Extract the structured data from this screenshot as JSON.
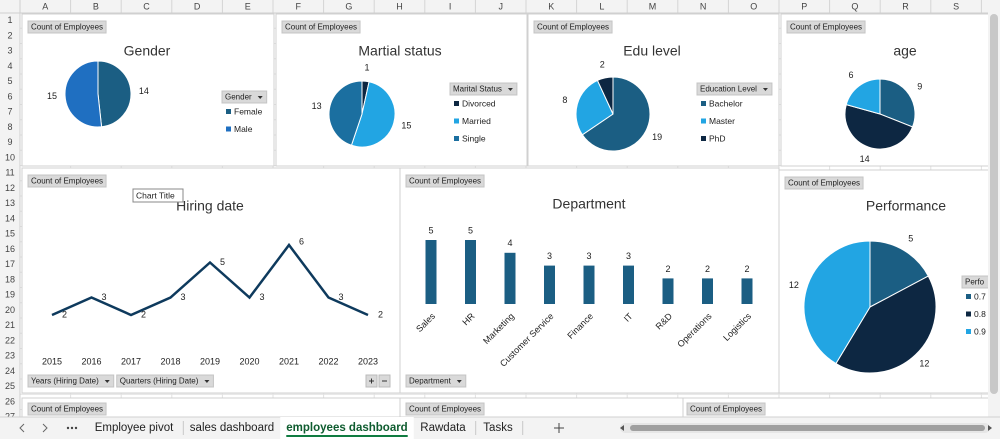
{
  "spreadsheet": {
    "columns": [
      "A",
      "B",
      "C",
      "D",
      "E",
      "F",
      "G",
      "H",
      "I",
      "J",
      "K",
      "L",
      "M",
      "N",
      "O",
      "P",
      "Q",
      "R",
      "S"
    ],
    "rows": [
      1,
      2,
      3,
      4,
      5,
      6,
      7,
      8,
      9,
      10,
      11,
      12,
      13,
      14,
      15,
      16,
      17,
      18,
      19,
      20,
      21,
      22,
      23,
      24,
      25,
      26,
      27
    ]
  },
  "chart_data": [
    {
      "type": "pie",
      "title": "Gender",
      "button": "Count of Employees",
      "legend_title": "Gender",
      "categories": [
        "Female",
        "Male"
      ],
      "values": [
        14,
        15
      ],
      "colors": [
        "#1b5e83",
        "#1f6fc1"
      ]
    },
    {
      "type": "pie",
      "title": "Martial status",
      "button": "Count of Employees",
      "legend_title": "Marital Status",
      "categories": [
        "Divorced",
        "Married",
        "Single"
      ],
      "values": [
        1,
        15,
        13
      ],
      "colors": [
        "#0d2742",
        "#22a5e3",
        "#1b6fa0"
      ]
    },
    {
      "type": "pie",
      "title": "Edu level",
      "button": "Count of Employees",
      "legend_title": "Education Level",
      "categories": [
        "Bachelor",
        "Master",
        "PhD"
      ],
      "values": [
        19,
        8,
        2
      ],
      "colors": [
        "#1b5e83",
        "#22a5e3",
        "#0d2742"
      ]
    },
    {
      "type": "pie",
      "title": "age",
      "button": "Count of Employees",
      "values": [
        9,
        14,
        6
      ],
      "colors": [
        "#1b5e83",
        "#0d2742",
        "#22a5e3"
      ]
    },
    {
      "type": "line",
      "title": "Hiring date",
      "button": "Count of Employees",
      "tooltip": "Chart Title",
      "x": [
        2015,
        2016,
        2017,
        2018,
        2019,
        2020,
        2021,
        2022,
        2023
      ],
      "values": [
        2,
        3,
        2,
        3,
        5,
        3,
        6,
        3,
        2
      ],
      "color": "#0e3a5d",
      "filters": [
        "Years (Hiring Date)",
        "Quarters (Hiring Date)"
      ]
    },
    {
      "type": "bar",
      "title": "Department",
      "button": "Count of Employees",
      "categories": [
        "Sales",
        "HR",
        "Marketing",
        "Customer Service",
        "Finance",
        "IT",
        "R&D",
        "Operations",
        "Logistics"
      ],
      "values": [
        5,
        5,
        4,
        3,
        3,
        3,
        2,
        2,
        2
      ],
      "color": "#1b5e83",
      "filters": [
        "Department"
      ]
    },
    {
      "type": "pie",
      "title": "Performance",
      "button": "Count of Employees",
      "legend_title": "Perfo",
      "categories": [
        "0.7",
        "0.8",
        "0.9"
      ],
      "values": [
        5,
        12,
        12
      ],
      "colors": [
        "#1b5e83",
        "#0d2742",
        "#22a5e3"
      ]
    },
    {
      "button": "Count of Employees"
    },
    {
      "button": "Count of Employees"
    },
    {
      "button": "Count of Employees"
    }
  ],
  "sheet_tabs": {
    "tabs": [
      "Employee pivot",
      "sales dashboard",
      "employees dashboard",
      "Rawdata",
      "Tasks"
    ],
    "active": 2
  }
}
